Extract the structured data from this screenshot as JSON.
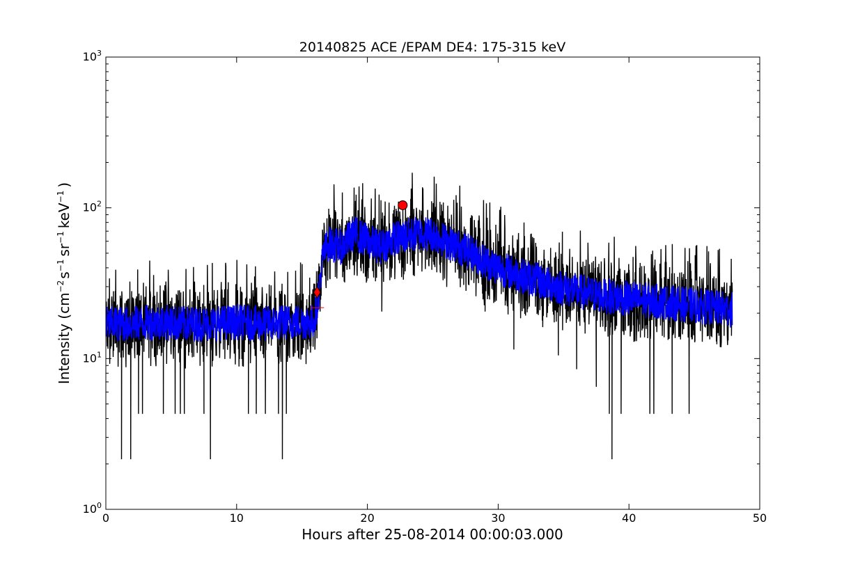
{
  "chart_data": {
    "type": "line",
    "title": "20140825 ACE /EPAM DE4: 175-315 keV",
    "xlabel": "Hours after 25-08-2014 00:00:03.000",
    "ylabel": {
      "prefix": "Intensity (cm",
      "exp1": "−2",
      "s": "s",
      "exp2": "−1",
      "sr": "sr",
      "exp3": "−1",
      "kev": "keV",
      "exp4": "−1",
      "suffix": ")"
    },
    "x_scale": "linear",
    "y_scale": "log",
    "xlim": [
      0,
      50
    ],
    "ylim": [
      1,
      1000
    ],
    "x_ticks": [
      "0",
      "10",
      "20",
      "30",
      "40",
      "50"
    ],
    "y_ticks": [
      {
        "base": "10",
        "exp": "0"
      },
      {
        "base": "10",
        "exp": "1"
      },
      {
        "base": "10",
        "exp": "2"
      },
      {
        "base": "10",
        "exp": "3"
      }
    ],
    "grid": false,
    "colors": {
      "raw": "#000000",
      "smoothed": "#0000ff",
      "marker": "#ff0000"
    },
    "series": [
      {
        "style": "raw",
        "profile_x": [
          0,
          2,
          4,
          6,
          8,
          10,
          12,
          14,
          15.9,
          16.2,
          16.6,
          17,
          18,
          19,
          20,
          21,
          22,
          23,
          24,
          25,
          26,
          27,
          28,
          29,
          30,
          32,
          34,
          36,
          38,
          40,
          42,
          44,
          46,
          47.9
        ],
        "profile_y": [
          17,
          17,
          17.5,
          17,
          17,
          17.5,
          17,
          17.5,
          17.5,
          24,
          48,
          58,
          55,
          68,
          60,
          55,
          62,
          65,
          68,
          67,
          60,
          55,
          50,
          44,
          40,
          35,
          31,
          28,
          26,
          25,
          24,
          23,
          22,
          21
        ],
        "spikes": [
          {
            "x": 1.2,
            "y": 2.15
          },
          {
            "x": 1.9,
            "y": 2.15
          },
          {
            "x": 8.0,
            "y": 2.15
          },
          {
            "x": 13.5,
            "y": 2.15
          },
          {
            "x": 38.7,
            "y": 2.15
          },
          {
            "x": 2.5,
            "y": 4.3
          },
          {
            "x": 2.8,
            "y": 4.3
          },
          {
            "x": 4.4,
            "y": 4.3
          },
          {
            "x": 5.3,
            "y": 4.3
          },
          {
            "x": 5.7,
            "y": 4.3
          },
          {
            "x": 6.0,
            "y": 4.3
          },
          {
            "x": 7.5,
            "y": 4.3
          },
          {
            "x": 10.9,
            "y": 4.3
          },
          {
            "x": 11.5,
            "y": 4.3
          },
          {
            "x": 12.2,
            "y": 4.3
          },
          {
            "x": 13.2,
            "y": 4.3
          },
          {
            "x": 13.8,
            "y": 4.3
          },
          {
            "x": 38.5,
            "y": 4.3
          },
          {
            "x": 39.4,
            "y": 4.3
          },
          {
            "x": 41.6,
            "y": 4.3
          },
          {
            "x": 41.9,
            "y": 4.3
          },
          {
            "x": 43.3,
            "y": 4.3
          },
          {
            "x": 44.6,
            "y": 4.3
          },
          {
            "x": 21.1,
            "y": 20.5
          },
          {
            "x": 29.0,
            "y": 20.5
          },
          {
            "x": 31.2,
            "y": 11.5
          },
          {
            "x": 34.6,
            "y": 10.5
          },
          {
            "x": 36.0,
            "y": 8.5
          },
          {
            "x": 37.5,
            "y": 6.5
          }
        ]
      },
      {
        "style": "smoothed",
        "profile_x": [
          0,
          2,
          4,
          6,
          8,
          10,
          12,
          14,
          15.9,
          16.2,
          16.6,
          17,
          18,
          19,
          20,
          21,
          22,
          23,
          24,
          25,
          26,
          27,
          28,
          29,
          30,
          32,
          34,
          36,
          38,
          40,
          42,
          44,
          46,
          47.9
        ],
        "profile_y": [
          17,
          17,
          17.5,
          17,
          17,
          17.5,
          17,
          17.5,
          17.5,
          24,
          48,
          58,
          55,
          68,
          60,
          55,
          62,
          65,
          68,
          67,
          60,
          55,
          50,
          44,
          40,
          35,
          31,
          28,
          26,
          25,
          24,
          23,
          22,
          21
        ]
      }
    ],
    "markers": [
      {
        "shape": "diamond",
        "x": 16.15,
        "y": 27.5
      },
      {
        "shape": "circle",
        "x": 22.7,
        "y": 104
      }
    ]
  }
}
